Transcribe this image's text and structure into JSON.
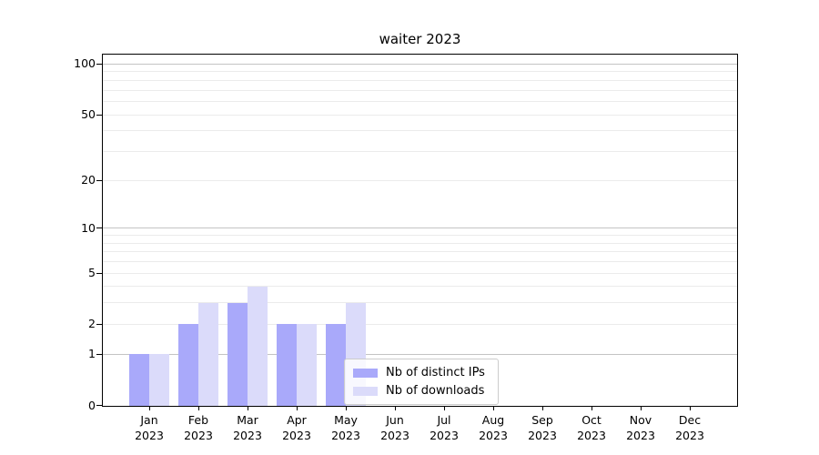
{
  "chart_data": {
    "type": "bar",
    "title": "waiter 2023",
    "x_tick_months": [
      "Jan",
      "Feb",
      "Mar",
      "Apr",
      "May",
      "Jun",
      "Jul",
      "Aug",
      "Sep",
      "Oct",
      "Nov",
      "Dec"
    ],
    "x_tick_year": "2023",
    "series": [
      {
        "name": "Nb of distinct IPs",
        "color": "#a9a9fa",
        "values": [
          1,
          2,
          3,
          2,
          2,
          0,
          0,
          0,
          0,
          0,
          0,
          0
        ]
      },
      {
        "name": "Nb of downloads",
        "color": "#dbdbfa",
        "values": [
          1,
          3,
          4,
          2,
          3,
          0,
          0,
          0,
          0,
          0,
          0,
          0
        ]
      }
    ],
    "yscale": "log1p",
    "ylim": [
      0,
      115
    ],
    "y_tick_labels": [
      0,
      1,
      2,
      5,
      10,
      20,
      50,
      100
    ],
    "y_decade_gridlines": [
      1,
      10,
      100
    ],
    "y_light_gridlines": [
      2,
      3,
      4,
      5,
      6,
      7,
      8,
      9,
      20,
      30,
      40,
      50,
      60,
      70,
      80,
      90
    ],
    "grid": true,
    "legend_position": "lower center-right inside plot",
    "colors": {
      "decade_grid": "#c4c4c4",
      "light_grid": "#ebebeb",
      "spine": "#000000",
      "background": "#ffffff",
      "legend_border": "#cccccc"
    }
  }
}
